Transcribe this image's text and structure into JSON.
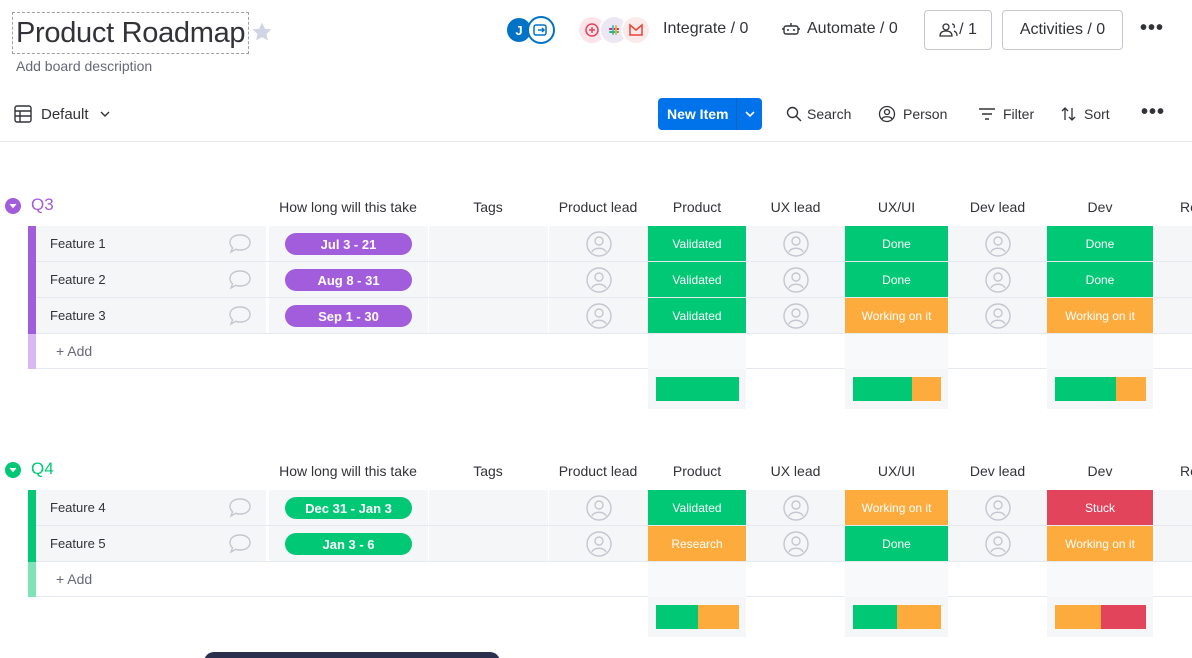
{
  "board": {
    "title": "Product Roadmap",
    "description": "Add board description"
  },
  "header": {
    "avatar_initial": "J",
    "integrate_label": "Integrate / 0",
    "automate_label": "Automate / 0",
    "members_label": "/ 1",
    "activities_label": "Activities / 0"
  },
  "toolbar": {
    "view_label": "Default",
    "new_item_label": "New Item",
    "search_label": "Search",
    "person_label": "Person",
    "filter_label": "Filter",
    "sort_label": "Sort"
  },
  "columns": [
    "How long will this take",
    "Tags",
    "Product lead",
    "Product",
    "UX lead",
    "UX/UI",
    "Dev lead",
    "Dev",
    "Re"
  ],
  "colors": {
    "purple": "#a25ddc",
    "green": "#00c875",
    "orange": "#fdab3d",
    "red": "#e2445c",
    "light_purple": "#d9b8f3",
    "light_green": "#7fe3b8"
  },
  "groups": [
    {
      "title": "Q3",
      "color": "#a25ddc",
      "add_label": "+ Add",
      "items": [
        {
          "name": "Feature 1",
          "timeline": "Jul 3 - 21",
          "product": "Validated",
          "uxui": "Done",
          "dev": "Done"
        },
        {
          "name": "Feature 2",
          "timeline": "Aug 8 - 31",
          "product": "Validated",
          "uxui": "Done",
          "dev": "Done"
        },
        {
          "name": "Feature 3",
          "timeline": "Sep 1 - 30",
          "product": "Validated",
          "uxui": "Working on it",
          "dev": "Working on it"
        }
      ]
    },
    {
      "title": "Q4",
      "color": "#00c875",
      "add_label": "+ Add",
      "items": [
        {
          "name": "Feature 4",
          "timeline": "Dec 31 - Jan 3",
          "product": "Validated",
          "uxui": "Working on it",
          "dev": "Stuck"
        },
        {
          "name": "Feature 5",
          "timeline": "Jan 3 - 6",
          "product": "Research",
          "uxui": "Done",
          "dev": "Working on it"
        }
      ]
    }
  ]
}
